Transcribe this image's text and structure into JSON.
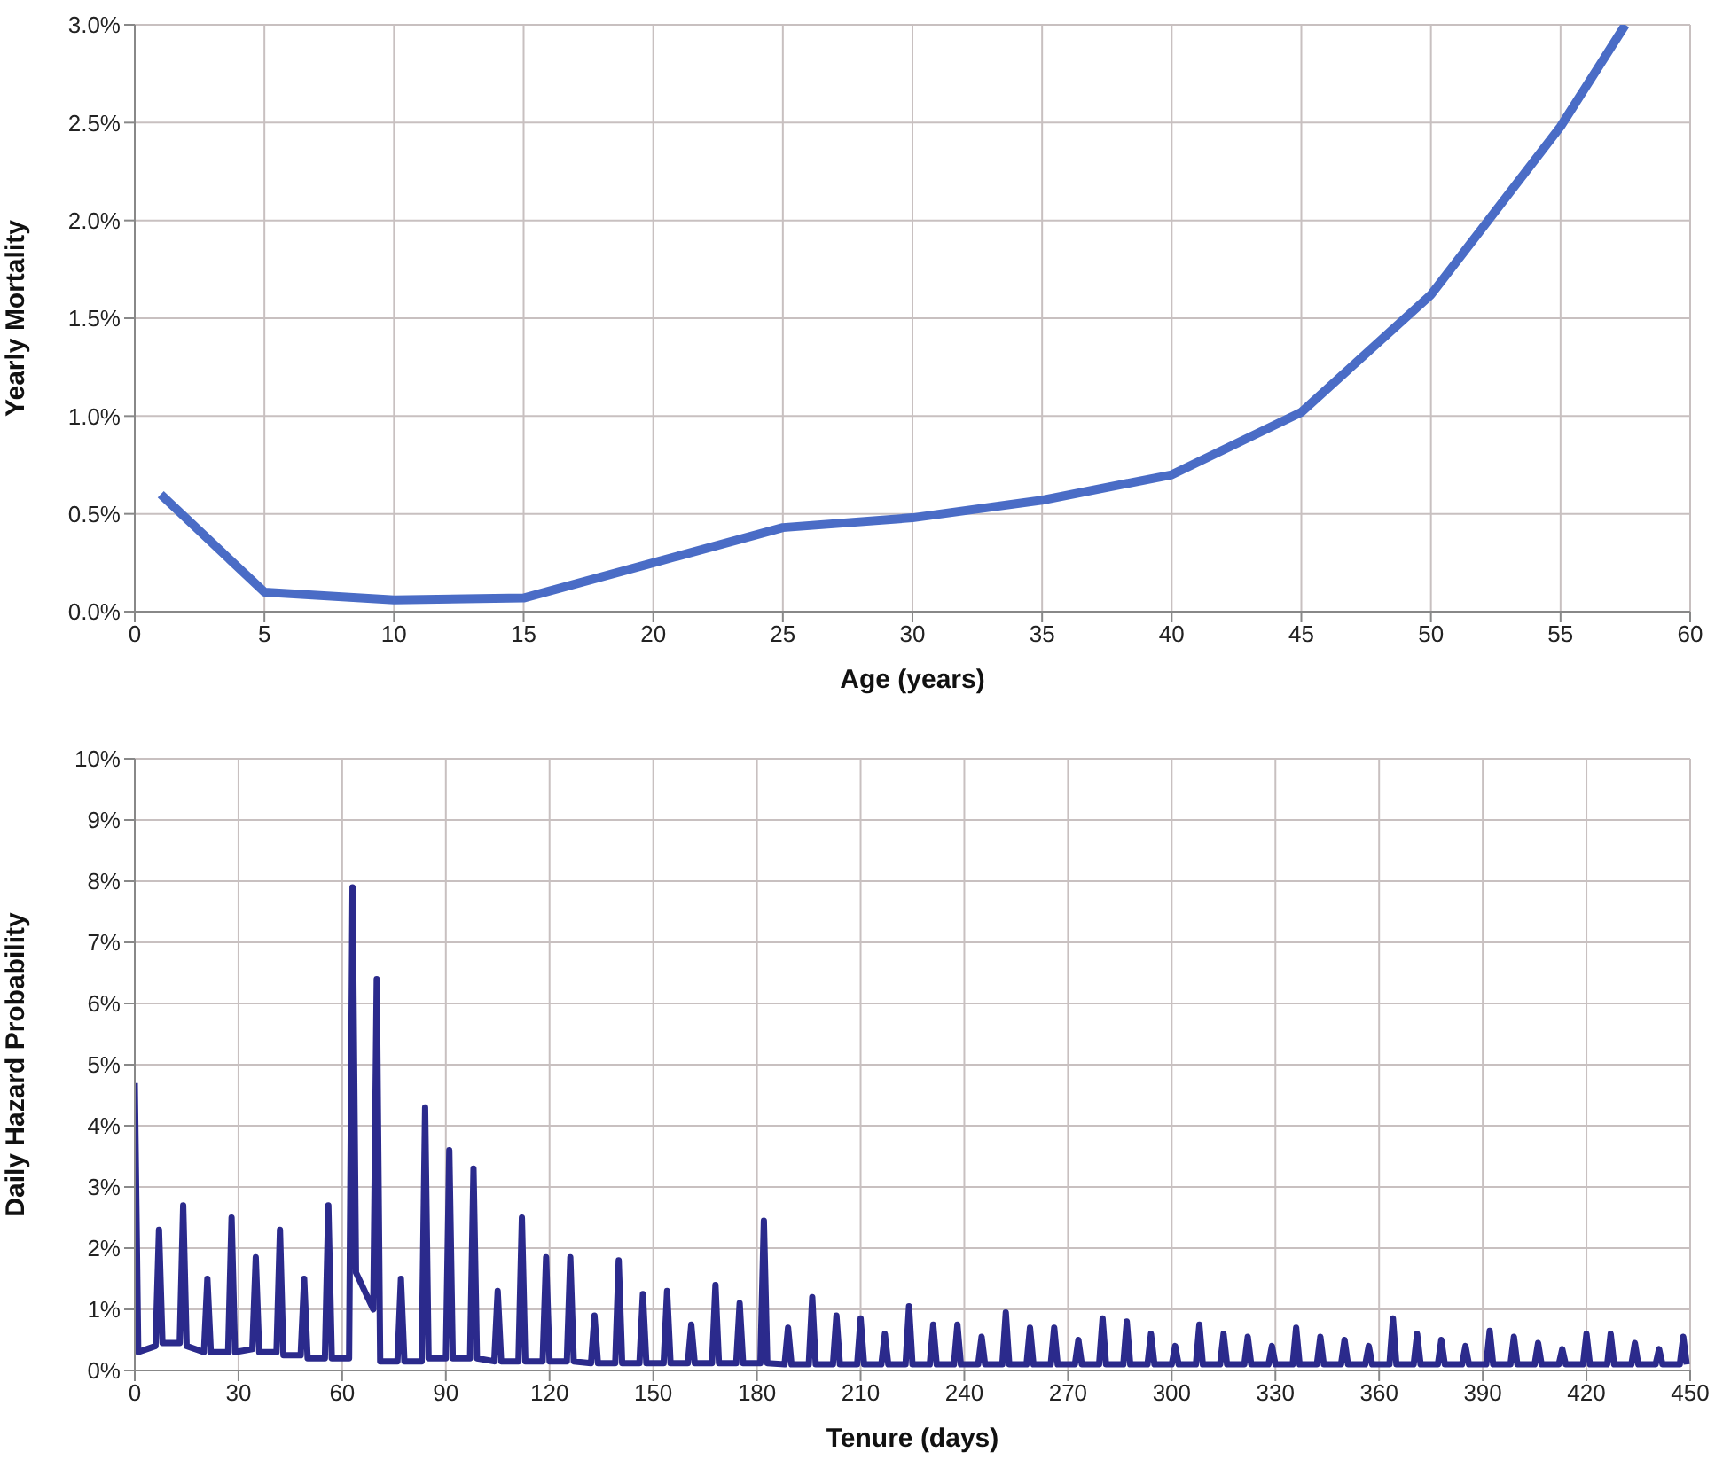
{
  "chart_data": [
    {
      "type": "line",
      "xlabel": "Age (years)",
      "ylabel": "Yearly Mortality",
      "x": [
        1,
        5,
        10,
        15,
        20,
        25,
        30,
        35,
        40,
        45,
        50,
        55,
        57.5
      ],
      "series": [
        {
          "color": "#4a6cc6",
          "values": [
            0.6,
            0.1,
            0.06,
            0.07,
            0.25,
            0.43,
            0.48,
            0.57,
            0.7,
            1.02,
            1.62,
            2.48,
            3.0
          ]
        }
      ],
      "xlim": [
        0,
        60
      ],
      "xticks": [
        0,
        5,
        10,
        15,
        20,
        25,
        30,
        35,
        40,
        45,
        50,
        55,
        60
      ],
      "ylim": [
        0,
        3
      ],
      "yticks": [
        {
          "value": 0,
          "label": "0.0%"
        },
        {
          "value": 0.5,
          "label": "0.5%"
        },
        {
          "value": 1,
          "label": "1.0%"
        },
        {
          "value": 1.5,
          "label": "1.5%"
        },
        {
          "value": 2,
          "label": "2.0%"
        },
        {
          "value": 2.5,
          "label": "2.5%"
        },
        {
          "value": 3,
          "label": "3.0%"
        }
      ],
      "grid": true,
      "marker": "none",
      "line_style": "solid"
    },
    {
      "type": "line",
      "xlabel": "Tenure (days)",
      "ylabel": "Daily Hazard Probability",
      "x": [
        0,
        1,
        6,
        7,
        8,
        13,
        14,
        15,
        20,
        21,
        22,
        27,
        28,
        29,
        34,
        35,
        36,
        41,
        42,
        43,
        48,
        49,
        50,
        55,
        56,
        57,
        62,
        63,
        64,
        69,
        70,
        71,
        76,
        77,
        78,
        83,
        84,
        85,
        90,
        91,
        92,
        97,
        98,
        99,
        104,
        105,
        106,
        111,
        112,
        113,
        118,
        119,
        120,
        125,
        126,
        127,
        132,
        133,
        134,
        139,
        140,
        141,
        146,
        147,
        148,
        153,
        154,
        155,
        160,
        161,
        162,
        167,
        168,
        169,
        174,
        175,
        176,
        181,
        182,
        183,
        188,
        189,
        190,
        195,
        196,
        197,
        202,
        203,
        204,
        209,
        210,
        211,
        216,
        217,
        218,
        223,
        224,
        225,
        230,
        231,
        232,
        237,
        238,
        239,
        244,
        245,
        246,
        251,
        252,
        253,
        258,
        259,
        260,
        265,
        266,
        267,
        272,
        273,
        274,
        279,
        280,
        281,
        286,
        287,
        288,
        293,
        294,
        295,
        300,
        301,
        302,
        307,
        308,
        309,
        314,
        315,
        316,
        321,
        322,
        323,
        328,
        329,
        330,
        335,
        336,
        337,
        342,
        343,
        344,
        349,
        350,
        351,
        356,
        357,
        358,
        363,
        364,
        365,
        370,
        371,
        372,
        377,
        378,
        379,
        384,
        385,
        386,
        391,
        392,
        393,
        398,
        399,
        400,
        405,
        406,
        407,
        412,
        413,
        414,
        419,
        420,
        421,
        426,
        427,
        428,
        433,
        434,
        435,
        440,
        441,
        442,
        447,
        448,
        449
      ],
      "series": [
        {
          "color": "#2b2a8c",
          "values": [
            4.7,
            0.3,
            0.4,
            2.3,
            0.45,
            0.45,
            2.7,
            0.4,
            0.3,
            1.5,
            0.3,
            0.3,
            2.5,
            0.3,
            0.35,
            1.85,
            0.3,
            0.3,
            2.3,
            0.25,
            0.25,
            1.5,
            0.2,
            0.2,
            2.7,
            0.2,
            0.2,
            7.9,
            1.6,
            1.0,
            6.4,
            0.15,
            0.15,
            1.5,
            0.15,
            0.15,
            4.3,
            0.2,
            0.2,
            3.6,
            0.2,
            0.2,
            3.3,
            0.2,
            0.15,
            1.3,
            0.15,
            0.15,
            2.5,
            0.15,
            0.15,
            1.85,
            0.15,
            0.15,
            1.85,
            0.15,
            0.12,
            0.9,
            0.12,
            0.12,
            1.8,
            0.12,
            0.12,
            1.25,
            0.12,
            0.12,
            1.3,
            0.12,
            0.12,
            0.75,
            0.12,
            0.12,
            1.4,
            0.12,
            0.12,
            1.1,
            0.12,
            0.12,
            2.45,
            0.12,
            0.1,
            0.7,
            0.1,
            0.1,
            1.2,
            0.1,
            0.1,
            0.9,
            0.1,
            0.1,
            0.85,
            0.1,
            0.1,
            0.6,
            0.1,
            0.1,
            1.05,
            0.1,
            0.1,
            0.75,
            0.1,
            0.1,
            0.75,
            0.1,
            0.1,
            0.55,
            0.1,
            0.1,
            0.95,
            0.1,
            0.1,
            0.7,
            0.1,
            0.1,
            0.7,
            0.1,
            0.1,
            0.5,
            0.1,
            0.1,
            0.85,
            0.1,
            0.1,
            0.8,
            0.1,
            0.1,
            0.6,
            0.1,
            0.1,
            0.4,
            0.1,
            0.1,
            0.75,
            0.1,
            0.1,
            0.6,
            0.1,
            0.1,
            0.55,
            0.1,
            0.1,
            0.4,
            0.1,
            0.1,
            0.7,
            0.1,
            0.1,
            0.55,
            0.1,
            0.1,
            0.5,
            0.1,
            0.1,
            0.4,
            0.1,
            0.1,
            0.85,
            0.1,
            0.1,
            0.6,
            0.1,
            0.1,
            0.5,
            0.1,
            0.1,
            0.4,
            0.1,
            0.1,
            0.65,
            0.1,
            0.1,
            0.55,
            0.1,
            0.1,
            0.45,
            0.1,
            0.1,
            0.35,
            0.1,
            0.1,
            0.6,
            0.1,
            0.1,
            0.6,
            0.1,
            0.1,
            0.45,
            0.1,
            0.1,
            0.35,
            0.1,
            0.1,
            0.55,
            0.1
          ]
        }
      ],
      "xlim": [
        0,
        450
      ],
      "xticks": [
        0,
        30,
        60,
        90,
        120,
        150,
        180,
        210,
        240,
        270,
        300,
        330,
        360,
        390,
        420,
        450
      ],
      "ylim": [
        0,
        10
      ],
      "yticks": [
        {
          "value": 0,
          "label": "0%"
        },
        {
          "value": 1,
          "label": "1%"
        },
        {
          "value": 2,
          "label": "2%"
        },
        {
          "value": 3,
          "label": "3%"
        },
        {
          "value": 4,
          "label": "4%"
        },
        {
          "value": 5,
          "label": "5%"
        },
        {
          "value": 6,
          "label": "6%"
        },
        {
          "value": 7,
          "label": "7%"
        },
        {
          "value": 8,
          "label": "8%"
        },
        {
          "value": 9,
          "label": "9%"
        },
        {
          "value": 10,
          "label": "10%"
        }
      ],
      "grid": true,
      "marker": "none",
      "line_style": "solid"
    }
  ]
}
